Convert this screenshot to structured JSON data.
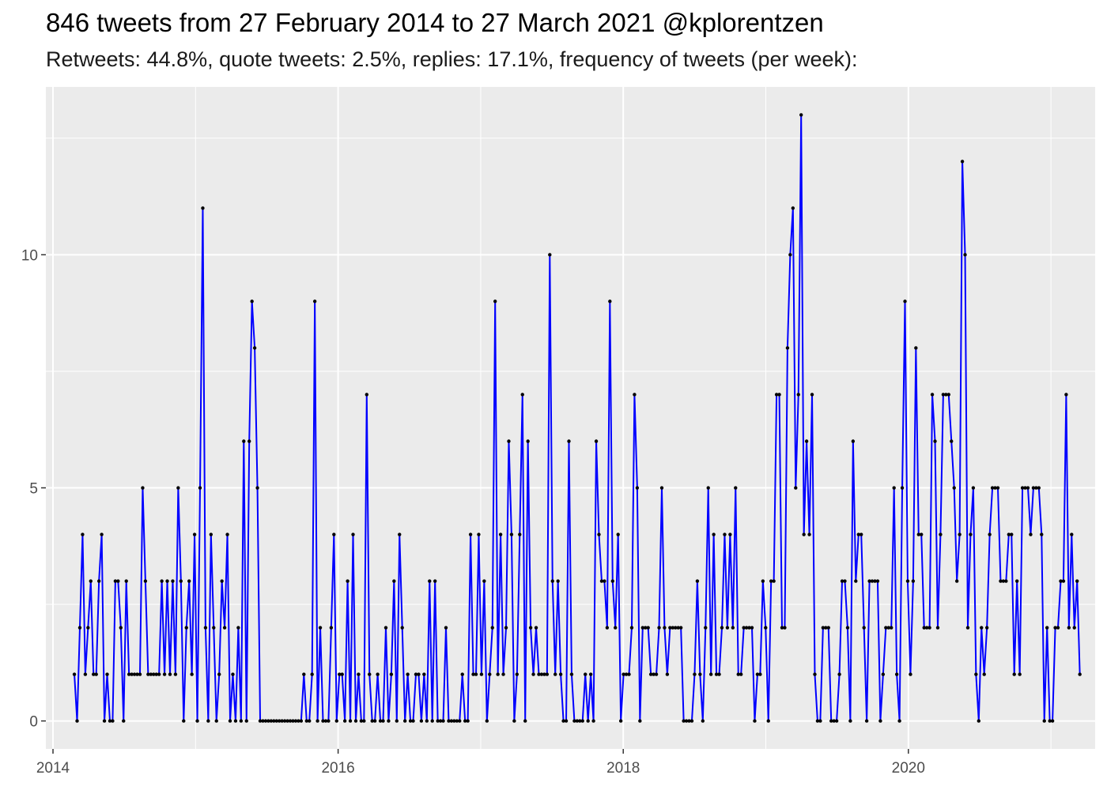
{
  "title": "846 tweets from 27 February 2014 to 27 March 2021 @kplorentzen",
  "subtitle": "Retweets: 44.8%, quote tweets: 2.5%, replies: 17.1%, frequency of tweets (per week):",
  "chart_data": {
    "type": "line",
    "xlabel": "",
    "ylabel": "",
    "xlim": [
      2013.95,
      2021.31
    ],
    "ylim": [
      -0.6,
      13.6
    ],
    "x_ticks": [
      2014,
      2016,
      2018,
      2020
    ],
    "x_tick_labels": [
      "2014",
      "2016",
      "2018",
      "2020"
    ],
    "y_ticks": [
      0,
      5,
      10
    ],
    "y_tick_labels": [
      "0",
      "5",
      "10"
    ],
    "grid": true,
    "background": "#ebebeb",
    "line_color": "#0000ff",
    "point_color": "#000000",
    "x_start": 2014.15,
    "x_step_weeks": 1,
    "values": [
      1,
      0,
      2,
      4,
      1,
      2,
      3,
      1,
      1,
      3,
      4,
      0,
      1,
      0,
      0,
      3,
      3,
      2,
      0,
      3,
      1,
      1,
      1,
      1,
      1,
      5,
      3,
      1,
      1,
      1,
      1,
      1,
      3,
      1,
      3,
      1,
      3,
      1,
      5,
      3,
      0,
      2,
      3,
      1,
      4,
      0,
      5,
      11,
      2,
      0,
      4,
      2,
      0,
      1,
      3,
      2,
      4,
      0,
      1,
      0,
      2,
      0,
      6,
      0,
      6,
      9,
      8,
      5,
      0,
      0,
      0,
      0,
      0,
      0,
      0,
      0,
      0,
      0,
      0,
      0,
      0,
      0,
      0,
      0,
      1,
      0,
      0,
      1,
      9,
      0,
      2,
      0,
      0,
      0,
      2,
      4,
      0,
      1,
      1,
      0,
      3,
      0,
      4,
      0,
      1,
      0,
      0,
      7,
      1,
      0,
      0,
      1,
      0,
      0,
      2,
      0,
      1,
      3,
      0,
      4,
      2,
      0,
      1,
      0,
      0,
      1,
      1,
      0,
      1,
      0,
      3,
      0,
      3,
      0,
      0,
      0,
      2,
      0,
      0,
      0,
      0,
      0,
      1,
      0,
      0,
      4,
      1,
      1,
      4,
      1,
      3,
      0,
      1,
      2,
      9,
      1,
      4,
      1,
      2,
      6,
      4,
      0,
      1,
      4,
      7,
      0,
      6,
      2,
      1,
      2,
      1,
      1,
      1,
      1,
      10,
      3,
      1,
      3,
      1,
      0,
      0,
      6,
      1,
      0,
      0,
      0,
      0,
      1,
      0,
      1,
      0,
      6,
      4,
      3,
      3,
      2,
      9,
      3,
      2,
      4,
      0,
      1,
      1,
      1,
      2,
      7,
      5,
      0,
      2,
      2,
      2,
      1,
      1,
      1,
      2,
      5,
      2,
      1,
      2,
      2,
      2,
      2,
      2,
      0,
      0,
      0,
      0,
      1,
      3,
      1,
      0,
      2,
      5,
      1,
      4,
      1,
      1,
      2,
      4,
      2,
      4,
      2,
      5,
      1,
      1,
      2,
      2,
      2,
      2,
      0,
      1,
      1,
      3,
      2,
      0,
      3,
      3,
      7,
      7,
      2,
      2,
      8,
      10,
      11,
      5,
      7,
      13,
      4,
      6,
      4,
      7,
      1,
      0,
      0,
      2,
      2,
      2,
      0,
      0,
      0,
      1,
      3,
      3,
      2,
      0,
      6,
      3,
      4,
      4,
      2,
      0,
      3,
      3,
      3,
      3,
      0,
      1,
      2,
      2,
      2,
      5,
      1,
      0,
      5,
      9,
      3,
      1,
      3,
      8,
      4,
      4,
      2,
      2,
      2,
      7,
      6,
      2,
      4,
      7,
      7,
      7,
      6,
      5,
      3,
      4,
      12,
      10,
      2,
      4,
      5,
      1,
      0,
      2,
      1,
      2,
      4,
      5,
      5,
      5,
      3,
      3,
      3,
      4,
      4,
      1,
      3,
      1,
      5,
      5,
      5,
      4,
      5,
      5,
      5,
      4,
      0,
      2,
      0,
      0,
      2,
      2,
      3,
      3,
      7,
      2,
      4,
      2,
      3,
      1
    ]
  }
}
